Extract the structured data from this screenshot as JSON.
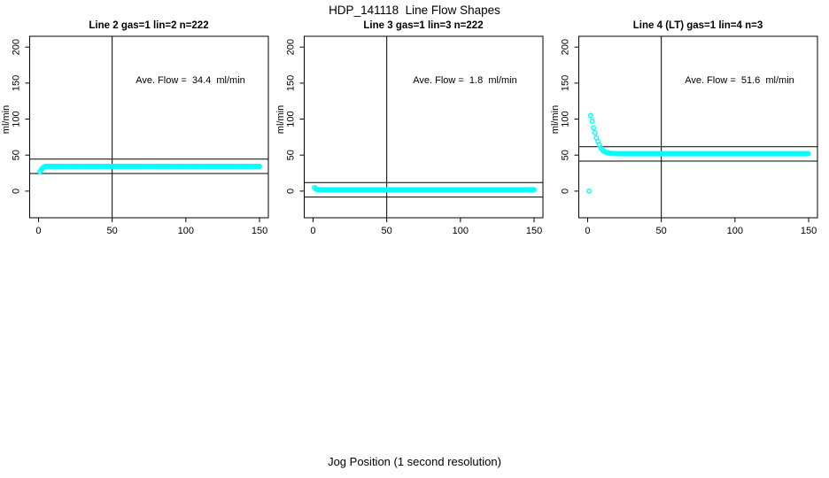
{
  "figure": {
    "title": "HDP_141118  Line Flow Shapes",
    "xlabel": "Jog Position (1 second resolution)"
  },
  "colors": {
    "point": "#00ffff",
    "axis": "#000000",
    "background": "#ffffff"
  },
  "axes": {
    "xlim": [
      -6,
      156
    ],
    "ylim": [
      -37,
      215
    ],
    "xticks": [
      0,
      50,
      100,
      150
    ],
    "yticks": [
      0,
      50,
      100,
      150,
      200
    ],
    "vline_x": 50
  },
  "chart_data": [
    {
      "type": "scatter",
      "title": "Line 2 gas=1 lin=2 n=222",
      "annotation": "Ave. Flow =  34.4  ml/min",
      "ylabel": "ml/min",
      "ave_flow": 34.4,
      "hlines": [
        44.4,
        24.4
      ],
      "extra_points": [],
      "transient_points": [
        [
          1,
          27
        ],
        [
          1.7,
          29
        ],
        [
          2.4,
          31
        ],
        [
          3.1,
          32.5
        ],
        [
          3.8,
          33.5
        ]
      ],
      "plateau": {
        "x_from": 4.5,
        "x_to": 150,
        "step": 0.75,
        "value": 34.4
      }
    },
    {
      "type": "scatter",
      "title": "Line 3 gas=1 lin=3 n=222",
      "annotation": "Ave. Flow =  1.8  ml/min",
      "ylabel": "ml/min",
      "ave_flow": 1.8,
      "hlines": [
        11.8,
        -8.2
      ],
      "extra_points": [
        [
          1,
          5
        ]
      ],
      "transient_points": [
        [
          1.8,
          3.2
        ],
        [
          2.5,
          2.4
        ]
      ],
      "plateau": {
        "x_from": 3,
        "x_to": 150,
        "step": 0.75,
        "value": 1.8
      }
    },
    {
      "type": "scatter",
      "title": "Line 4 (LT) gas=1 lin=4 n=3",
      "annotation": "Ave. Flow =  51.6  ml/min",
      "ylabel": "ml/min",
      "ave_flow": 51.6,
      "hlines": [
        61.6,
        41.6
      ],
      "extra_points": [
        [
          1,
          0
        ]
      ],
      "transient_points": [
        [
          2,
          105
        ],
        [
          3,
          97
        ],
        [
          4,
          88
        ],
        [
          5,
          81
        ],
        [
          6,
          74
        ],
        [
          7,
          69
        ],
        [
          8,
          64
        ],
        [
          9,
          60
        ],
        [
          10,
          57
        ],
        [
          11,
          55.5
        ],
        [
          12,
          54.5
        ],
        [
          13,
          53.5
        ],
        [
          14,
          53
        ],
        [
          15,
          52.8
        ],
        [
          16,
          52.5
        ],
        [
          17,
          52.3
        ],
        [
          18,
          52.2
        ],
        [
          19,
          52.1
        ]
      ],
      "plateau": {
        "x_from": 20,
        "x_to": 150,
        "step": 0.75,
        "value": 52
      }
    }
  ]
}
